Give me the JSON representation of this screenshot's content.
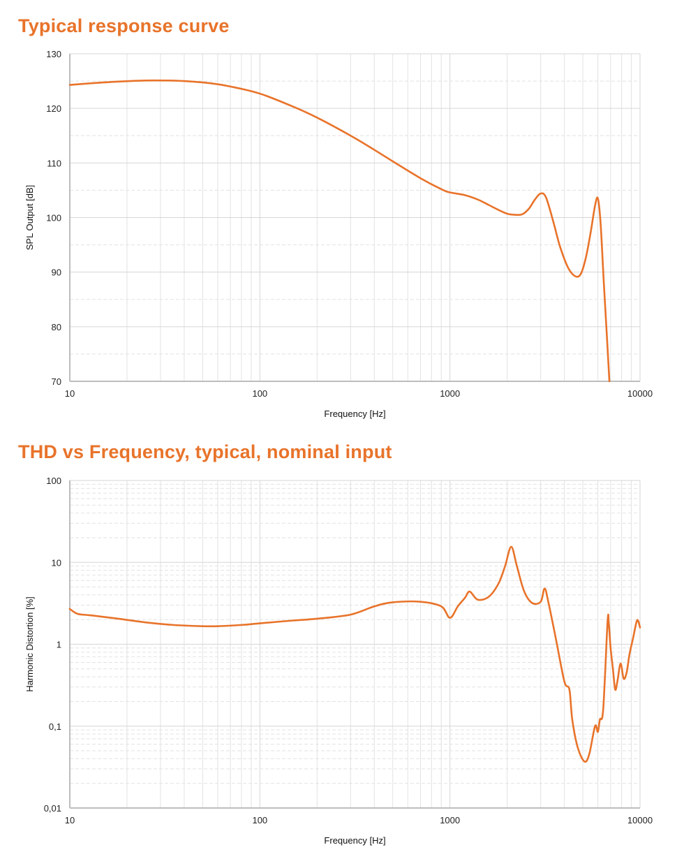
{
  "colors": {
    "accent": "#E8732A",
    "curve": "#E8732A",
    "grid": "#d6d6d6",
    "grid_minor": "#e2e2e2",
    "axis": "#bdbdbd"
  },
  "chart_data": [
    {
      "type": "line",
      "title": "Typical response curve",
      "xlabel": "Frequency [Hz]",
      "ylabel": "SPL Output [dB]",
      "xscale": "log",
      "xlim": [
        10,
        10000
      ],
      "ylim": [
        70,
        130
      ],
      "xticks": [
        10,
        100,
        1000,
        10000
      ],
      "xtick_labels": [
        "10",
        "100",
        "1000",
        "10000"
      ],
      "yticks": [
        70,
        80,
        90,
        100,
        110,
        120,
        130
      ],
      "ytick_labels": [
        "70",
        "80",
        "90",
        "100",
        "110",
        "120",
        "130"
      ],
      "grid": true,
      "series": [
        {
          "name": "SPL Output",
          "x": [
            10,
            13,
            18,
            25,
            32,
            40,
            55,
            70,
            100,
            150,
            200,
            300,
            400,
            500,
            700,
            900,
            1000,
            1200,
            1400,
            1600,
            1800,
            2000,
            2200,
            2400,
            2600,
            2800,
            3000,
            3200,
            3500,
            3800,
            4200,
            4600,
            4900,
            5200,
            5500,
            5800,
            6000,
            6200,
            6450,
            6700,
            6900
          ],
          "values": [
            124.3,
            124.6,
            124.9,
            125.1,
            125.1,
            125.0,
            124.6,
            124.0,
            122.7,
            120.3,
            118.3,
            115.0,
            112.4,
            110.3,
            107.2,
            105.2,
            104.6,
            104.1,
            103.3,
            102.3,
            101.4,
            100.7,
            100.5,
            100.6,
            101.6,
            103.3,
            104.4,
            103.7,
            99.2,
            94.6,
            90.7,
            89.2,
            89.8,
            92.8,
            97.3,
            102.2,
            103.5,
            99.0,
            88.0,
            78.0,
            70.0
          ]
        }
      ]
    },
    {
      "type": "line",
      "title": "THD vs Frequency, typical, nominal input",
      "xlabel": "Frequency [Hz]",
      "ylabel": "Harmonic Distortion [%]",
      "xscale": "log",
      "yscale": "log",
      "xlim": [
        10,
        10000
      ],
      "ylim": [
        0.01,
        100
      ],
      "xticks": [
        10,
        100,
        1000,
        10000
      ],
      "xtick_labels": [
        "10",
        "100",
        "1000",
        "10000"
      ],
      "yticks": [
        0.01,
        0.1,
        1,
        10,
        100
      ],
      "ytick_labels": [
        "0,01",
        "0,1",
        "1",
        "10",
        "100"
      ],
      "grid": true,
      "series": [
        {
          "name": "Harmonic Distortion",
          "x": [
            10,
            11,
            13,
            18,
            25,
            35,
            50,
            60,
            80,
            100,
            150,
            200,
            300,
            400,
            500,
            700,
            900,
            1000,
            1100,
            1200,
            1270,
            1400,
            1600,
            1800,
            1950,
            2100,
            2250,
            2450,
            2700,
            3000,
            3150,
            3300,
            3600,
            4000,
            4250,
            4400,
            4700,
            5100,
            5400,
            5800,
            6000,
            6150,
            6400,
            6750,
            6850,
            7000,
            7200,
            7400,
            7600,
            7900,
            8200,
            8500,
            8800,
            9200,
            9600,
            9800,
            10000
          ],
          "values": [
            2.7,
            2.35,
            2.25,
            2.05,
            1.85,
            1.72,
            1.66,
            1.66,
            1.72,
            1.8,
            1.95,
            2.05,
            2.3,
            2.9,
            3.25,
            3.3,
            2.9,
            2.1,
            2.9,
            3.7,
            4.4,
            3.5,
            3.8,
            5.5,
            9.0,
            15.5,
            9.0,
            4.5,
            3.2,
            3.3,
            4.8,
            3.2,
            1.2,
            0.35,
            0.28,
            0.12,
            0.055,
            0.037,
            0.045,
            0.1,
            0.085,
            0.12,
            0.16,
            1.9,
            1.8,
            0.9,
            0.5,
            0.28,
            0.35,
            0.58,
            0.38,
            0.45,
            0.75,
            1.2,
            1.9,
            1.9,
            1.6
          ]
        }
      ]
    }
  ]
}
